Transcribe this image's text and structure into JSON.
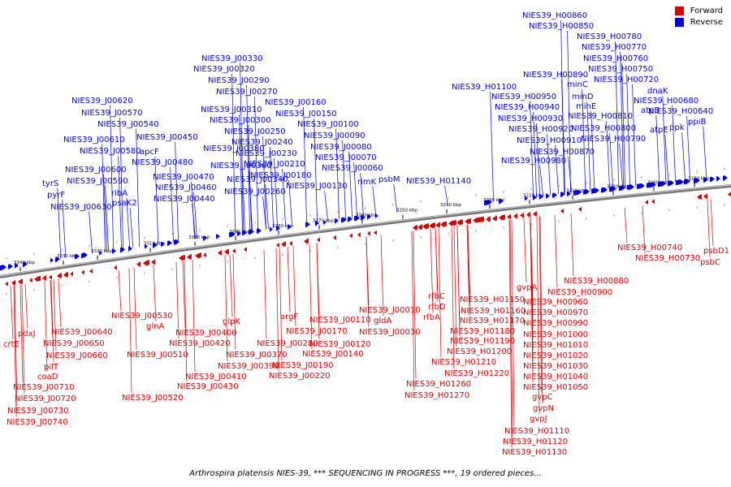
{
  "legend": {
    "forward": "Forward",
    "reverse": "Reverse"
  },
  "colors": {
    "forward": "#e00000",
    "reverse": "#0000e0",
    "axis": "#888888"
  },
  "caption": "Arthrospira platensis NIES-39, *** SEQUENCING IN PROGRESS ***, 19 ordered pieces...",
  "ticks": [
    "3340 kbp",
    "3330 kbp",
    "3320 kbp",
    "3310 kbp",
    "3300 kbp",
    "3290 kbp",
    "3280 kbp",
    "3270 kbp",
    "3260 kbp",
    "3250 kbp",
    "3240 kbp",
    "3230 kbp",
    "3220 kbp",
    "3210 kbp",
    "3200 kbp",
    "3190 kbp",
    "3180 kbp"
  ],
  "reverse_labels": [
    "NIES39_H00860",
    "NIES39_H00850",
    "NIES39_H00780",
    "NIES39_H00770",
    "NIES39_H00760",
    "NIES39_H00750",
    "NIES39_H00720",
    "NIES39_H00890",
    "NIES39_H01100",
    "minC",
    "minD",
    "minE",
    "dnaK",
    "NIES39_H00680",
    "atpB",
    "NIES39_H00640",
    "NIES39_H00950",
    "NIES39_H00940",
    "NIES39_H00930",
    "NIES39_H00920",
    "NIES39_H00910",
    "NIES39_H00870",
    "NIES39_H00980",
    "NIES39_H00810",
    "NIES39_H00800",
    "NIES39_H00790",
    "atpE",
    "ppk",
    "ppiB",
    "NIES39_H01140",
    "NIES39_J00330",
    "NIES39_J00320",
    "NIES39_J00290",
    "NIES39_J00270",
    "NIES39_J00310",
    "NIES39_J00300",
    "NIES39_J00250",
    "NIES39_J00240",
    "NIES39_J00230",
    "NIES39_J00210",
    "NIES39_J00180",
    "NIES39_J00260",
    "NIES39_J00130",
    "NIES39_J00160",
    "NIES39_J00150",
    "NIES39_J00100",
    "NIES39_J00090",
    "NIES39_J00080",
    "NIES39_J00070",
    "NIES39_J00060",
    "rimK",
    "psbM",
    "NIES39_J00380",
    "NIES39_J00360",
    "NIES39_J00340",
    "NIES39_J00450",
    "NIES39_J00480",
    "NIES39_J00470",
    "NIES39_J00460",
    "NIES39_J00440",
    "apcF",
    "NIES39_J00620",
    "NIES39_J00570",
    "NIES39_J00540",
    "NIES39_J00610",
    "NIES39_J00580",
    "NIES39_J00600",
    "NIES39_J00590",
    "ribA",
    "psaK2",
    "tyrS",
    "pyrF",
    "NIES39_J00630"
  ],
  "forward_labels": [
    "NIES39_H00740",
    "NIES39_H00730",
    "psbD1",
    "psbC",
    "NIES39_H00880",
    "NIES39_H00900",
    "gvpA",
    "NIES39_H00960",
    "NIES39_H00970",
    "NIES39_H00990",
    "NIES39_H01000",
    "NIES39_H01010",
    "NIES39_H01020",
    "NIES39_H01030",
    "NIES39_H01040",
    "NIES39_H01050",
    "gvpC",
    "gvpN",
    "gvpJ",
    "NIES39_H01110",
    "NIES39_H01120",
    "NIES39_H01130",
    "NIES39_H01150",
    "NIES39_H01160",
    "NIES39_H01170",
    "NIES39_H01180",
    "NIES39_H01190",
    "NIES39_H01200",
    "NIES39_H01210",
    "NIES39_H01220",
    "NIES39_H01260",
    "NIES39_H01270",
    "rfbC",
    "rfbD",
    "rfbA",
    "NIES39_J00010",
    "gldA",
    "NIES39_J00030",
    "NIES39_J00110",
    "NIES39_J00120",
    "NIES39_J00140",
    "NIES39_J00170",
    "NIES39_J00190",
    "NIES39_J00220",
    "argF",
    "NIES39_J00280",
    "NIES39_J00370",
    "NIES39_J00390",
    "NIES39_J00410",
    "NIES39_J00430",
    "NIES39_J00420",
    "NIES39_J00400",
    "glpK",
    "NIES39_J00530",
    "glnA",
    "NIES39_J00510",
    "NIES39_J00520",
    "NIES39_J00640",
    "NIES39_J00650",
    "NIES39_J00660",
    "pilT",
    "coaD",
    "NIES39_J00710",
    "NIES39_J00720",
    "NIES39_J00730",
    "NIES39_J00740",
    "pdxJ",
    "crtE"
  ]
}
